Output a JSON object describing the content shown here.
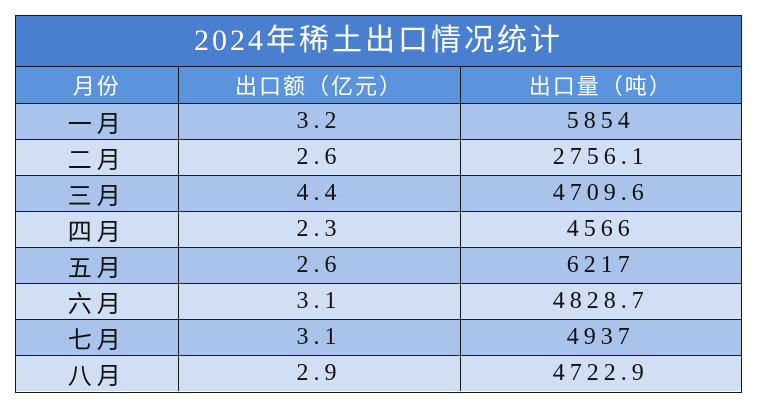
{
  "title": "2024年稀土出口情况统计",
  "header": [
    "月份",
    "出口额（亿元）",
    "出口量（吨）"
  ],
  "rows": [
    [
      "一月",
      "3.2",
      "5854"
    ],
    [
      "二月",
      "2.6",
      "2756.1"
    ],
    [
      "三月",
      "4.4",
      "4709.6"
    ],
    [
      "四月",
      "2.3",
      "4566"
    ],
    [
      "五月",
      "2.6",
      "6217"
    ],
    [
      "六月",
      "3.1",
      "4828.7"
    ],
    [
      "七月",
      "3.1",
      "4937"
    ],
    [
      "八月",
      "2.9",
      "4722.9"
    ]
  ]
}
